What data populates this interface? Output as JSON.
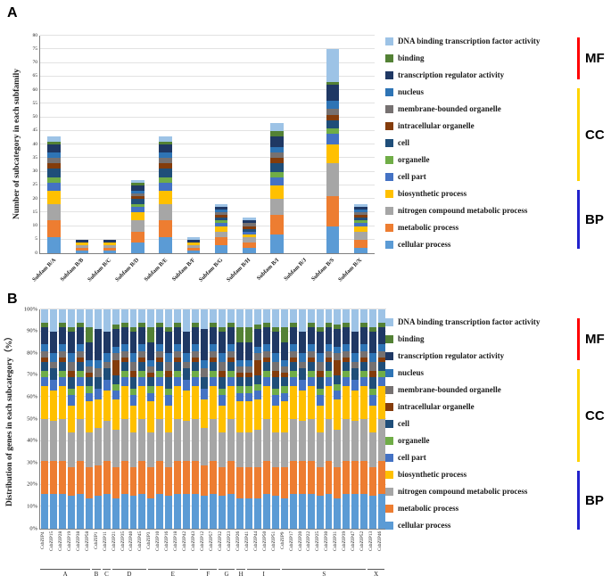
{
  "panel_a": {
    "label": "A"
  },
  "panel_b": {
    "label": "B"
  },
  "subcategories": [
    {
      "name": "DNA binding transcription factor activity",
      "color": "#9DC3E6",
      "group": "MF"
    },
    {
      "name": "binding",
      "color": "#538135",
      "group": "MF"
    },
    {
      "name": "transcription regulator activity",
      "color": "#1F3864",
      "group": "MF"
    },
    {
      "name": "nucleus",
      "color": "#2E74B5",
      "group": "CC"
    },
    {
      "name": "membrane-bounded organelle",
      "color": "#767171",
      "group": "CC"
    },
    {
      "name": "intracellular organelle",
      "color": "#843C0B",
      "group": "CC"
    },
    {
      "name": "cell",
      "color": "#1F4E79",
      "group": "CC"
    },
    {
      "name": "organelle",
      "color": "#70AD47",
      "group": "CC"
    },
    {
      "name": "cell part",
      "color": "#4472C4",
      "group": "CC"
    },
    {
      "name": "biosynthetic process",
      "color": "#FFC000",
      "group": "BP"
    },
    {
      "name": "nitrogen compound metabolic process",
      "color": "#A6A6A6",
      "group": "BP"
    },
    {
      "name": "metabolic process",
      "color": "#ED7D31",
      "group": "BP"
    },
    {
      "name": "cellular process",
      "color": "#5B9BD5",
      "group": "BP"
    }
  ],
  "go_groups": [
    {
      "label": "MF",
      "color": "#FF0000",
      "span": [
        0,
        2
      ]
    },
    {
      "label": "CC",
      "color": "#FFD400",
      "span": [
        3,
        8
      ]
    },
    {
      "label": "BP",
      "color": "#2222CC",
      "span": [
        9,
        12
      ]
    }
  ],
  "chart_data": [
    {
      "type": "bar",
      "stacked": true,
      "ylabel": "Number of subcategory in each subfamily",
      "ylim": [
        0,
        80
      ],
      "ytick_step": 5,
      "legend_position": "right",
      "series_note": "values listed per bar in legend order (top item first, bottom stack item last)",
      "bars": [
        {
          "label": "Subfam B/A",
          "values": [
            2,
            1,
            3,
            2,
            2,
            2,
            3,
            2,
            3,
            5,
            6,
            6,
            6
          ]
        },
        {
          "label": "Subfam B/B",
          "values": [
            0,
            0,
            1,
            0,
            0,
            0,
            0,
            0,
            0,
            1,
            1,
            1,
            1
          ]
        },
        {
          "label": "Subfam B/C",
          "values": [
            0,
            0,
            1,
            0,
            0,
            0,
            0,
            0,
            0,
            1,
            1,
            1,
            1
          ]
        },
        {
          "label": "Subfam B/D",
          "values": [
            1,
            1,
            2,
            1,
            1,
            1,
            2,
            1,
            2,
            3,
            4,
            4,
            4
          ]
        },
        {
          "label": "Subfam B/E",
          "values": [
            2,
            1,
            3,
            2,
            2,
            2,
            3,
            2,
            3,
            5,
            6,
            6,
            6
          ]
        },
        {
          "label": "Subfam B/F",
          "values": [
            1,
            0,
            1,
            0,
            0,
            0,
            0,
            0,
            0,
            1,
            1,
            1,
            1
          ]
        },
        {
          "label": "Subfam B/G",
          "values": [
            1,
            0,
            1,
            1,
            1,
            1,
            1,
            1,
            1,
            2,
            2,
            3,
            3
          ]
        },
        {
          "label": "Subfam B/H",
          "values": [
            1,
            0,
            1,
            0,
            1,
            1,
            1,
            0,
            1,
            1,
            2,
            2,
            2
          ]
        },
        {
          "label": "Subfam B/I",
          "values": [
            3,
            2,
            4,
            2,
            2,
            2,
            3,
            2,
            3,
            5,
            6,
            7,
            7
          ]
        },
        {
          "label": "Subfam B/J",
          "values": [
            0,
            0,
            0,
            0,
            0,
            0,
            0,
            0,
            0,
            0,
            0,
            0,
            0
          ]
        },
        {
          "label": "Subfam B/S",
          "values": [
            12,
            1,
            6,
            3,
            2,
            2,
            3,
            2,
            4,
            7,
            12,
            11,
            10
          ]
        },
        {
          "label": "Subfam B/X",
          "values": [
            1,
            0,
            1,
            1,
            1,
            1,
            1,
            1,
            1,
            2,
            3,
            3,
            2
          ]
        }
      ]
    },
    {
      "type": "bar",
      "stacked": true,
      "percent": true,
      "ylabel": "Distribution of genes in each subcategory（%）",
      "ylim": [
        0,
        100
      ],
      "ytick_step": 10,
      "legend_position": "right",
      "groups": [
        {
          "label": "A",
          "count": 6
        },
        {
          "label": "B",
          "count": 1
        },
        {
          "label": "C",
          "count": 1
        },
        {
          "label": "D",
          "count": 4
        },
        {
          "label": "E",
          "count": 6
        },
        {
          "label": "F",
          "count": 2
        },
        {
          "label": "G",
          "count": 2
        },
        {
          "label": "H",
          "count": 1
        },
        {
          "label": "I",
          "count": 4
        },
        {
          "label": "S",
          "count": 10
        },
        {
          "label": "X",
          "count": 2
        }
      ],
      "bars": [
        {
          "label": "CsbZIP4",
          "values": [
            6,
            2,
            8,
            3,
            3,
            2,
            4,
            3,
            4,
            15,
            19,
            15,
            16
          ]
        },
        {
          "label": "CsbZIP15",
          "values": [
            10,
            0,
            10,
            4,
            3,
            0,
            5,
            0,
            5,
            14,
            18,
            15,
            16
          ]
        },
        {
          "label": "CsbZIP28",
          "values": [
            6,
            2,
            8,
            3,
            3,
            2,
            4,
            3,
            4,
            15,
            19,
            15,
            16
          ]
        },
        {
          "label": "CsbZIP19",
          "values": [
            8,
            2,
            10,
            4,
            4,
            3,
            5,
            3,
            5,
            12,
            16,
            13,
            15
          ]
        },
        {
          "label": "CsbZIP38",
          "values": [
            6,
            2,
            8,
            3,
            3,
            2,
            4,
            3,
            4,
            15,
            19,
            15,
            16
          ]
        },
        {
          "label": "CsbZIP58",
          "values": [
            8,
            7,
            8,
            3,
            3,
            2,
            4,
            3,
            4,
            14,
            16,
            14,
            14
          ]
        },
        {
          "label": "CsbZIP1",
          "values": [
            9,
            0,
            14,
            4,
            4,
            0,
            5,
            0,
            5,
            13,
            17,
            14,
            15
          ]
        },
        {
          "label": "CsbZIP11",
          "values": [
            10,
            0,
            10,
            4,
            3,
            0,
            5,
            0,
            5,
            14,
            18,
            15,
            16
          ]
        },
        {
          "label": "CsbZIP21",
          "values": [
            7,
            2,
            8,
            3,
            3,
            7,
            4,
            3,
            4,
            14,
            17,
            14,
            14
          ]
        },
        {
          "label": "CsbZIP35",
          "values": [
            6,
            2,
            8,
            3,
            3,
            2,
            4,
            3,
            4,
            15,
            19,
            15,
            16
          ]
        },
        {
          "label": "CsbZIP40",
          "values": [
            8,
            2,
            10,
            4,
            4,
            3,
            5,
            3,
            5,
            12,
            16,
            13,
            15
          ]
        },
        {
          "label": "CsbZIP45",
          "values": [
            6,
            2,
            8,
            3,
            3,
            2,
            4,
            3,
            4,
            15,
            19,
            15,
            16
          ]
        },
        {
          "label": "CsbZIP3",
          "values": [
            8,
            7,
            8,
            3,
            3,
            2,
            4,
            3,
            4,
            14,
            16,
            14,
            14
          ]
        },
        {
          "label": "CsbZIP10",
          "values": [
            6,
            2,
            8,
            3,
            3,
            2,
            4,
            3,
            4,
            15,
            19,
            15,
            16
          ]
        },
        {
          "label": "CsbZIP16",
          "values": [
            8,
            2,
            10,
            4,
            4,
            3,
            5,
            3,
            5,
            12,
            16,
            13,
            15
          ]
        },
        {
          "label": "CsbZIP18",
          "values": [
            6,
            2,
            8,
            3,
            3,
            2,
            4,
            3,
            4,
            15,
            19,
            15,
            16
          ]
        },
        {
          "label": "CsbZIP42",
          "values": [
            10,
            0,
            10,
            4,
            3,
            0,
            5,
            0,
            5,
            14,
            18,
            15,
            16
          ]
        },
        {
          "label": "CsbZIP43",
          "values": [
            6,
            2,
            8,
            3,
            3,
            2,
            4,
            3,
            4,
            15,
            19,
            15,
            16
          ]
        },
        {
          "label": "CsbZIP12",
          "values": [
            9,
            0,
            14,
            4,
            4,
            0,
            5,
            0,
            5,
            13,
            17,
            14,
            15
          ]
        },
        {
          "label": "CsbZIP57",
          "values": [
            6,
            2,
            8,
            3,
            3,
            2,
            4,
            3,
            4,
            15,
            19,
            15,
            16
          ]
        },
        {
          "label": "CsbZIP32",
          "values": [
            8,
            2,
            10,
            4,
            4,
            3,
            5,
            3,
            5,
            12,
            16,
            13,
            15
          ]
        },
        {
          "label": "CsbZIP23",
          "values": [
            6,
            2,
            8,
            3,
            3,
            2,
            4,
            3,
            4,
            15,
            19,
            15,
            16
          ]
        },
        {
          "label": "CsbZIP26",
          "values": [
            8,
            7,
            8,
            3,
            3,
            2,
            4,
            3,
            4,
            14,
            16,
            14,
            14
          ]
        },
        {
          "label": "CsbZIP41",
          "values": [
            8,
            7,
            8,
            3,
            3,
            2,
            4,
            3,
            4,
            14,
            16,
            14,
            14
          ]
        },
        {
          "label": "CsbZIP44",
          "values": [
            7,
            2,
            8,
            3,
            3,
            7,
            4,
            3,
            4,
            14,
            17,
            14,
            14
          ]
        },
        {
          "label": "CsbZIP50",
          "values": [
            6,
            2,
            8,
            3,
            3,
            2,
            4,
            3,
            4,
            15,
            19,
            15,
            16
          ]
        },
        {
          "label": "CsbZIP51",
          "values": [
            8,
            2,
            10,
            4,
            4,
            3,
            5,
            3,
            5,
            12,
            16,
            13,
            15
          ]
        },
        {
          "label": "CsbZIP9",
          "values": [
            8,
            7,
            8,
            3,
            3,
            2,
            4,
            3,
            4,
            14,
            16,
            14,
            14
          ]
        },
        {
          "label": "CsbZIP17",
          "values": [
            6,
            2,
            8,
            3,
            3,
            2,
            4,
            3,
            4,
            15,
            19,
            15,
            16
          ]
        },
        {
          "label": "CsbZIP20",
          "values": [
            10,
            0,
            10,
            4,
            3,
            0,
            5,
            0,
            5,
            14,
            18,
            15,
            16
          ]
        },
        {
          "label": "CsbZIP22",
          "values": [
            6,
            2,
            8,
            3,
            3,
            2,
            4,
            3,
            4,
            15,
            19,
            15,
            16
          ]
        },
        {
          "label": "CsbZIP25",
          "values": [
            8,
            2,
            10,
            4,
            4,
            3,
            5,
            3,
            5,
            12,
            16,
            13,
            15
          ]
        },
        {
          "label": "CsbZIP30",
          "values": [
            6,
            2,
            8,
            3,
            3,
            2,
            4,
            3,
            4,
            15,
            19,
            15,
            16
          ]
        },
        {
          "label": "CsbZIP31",
          "values": [
            7,
            2,
            8,
            3,
            3,
            7,
            4,
            3,
            4,
            14,
            17,
            14,
            14
          ]
        },
        {
          "label": "CsbZIP39",
          "values": [
            6,
            2,
            8,
            3,
            3,
            2,
            4,
            3,
            4,
            15,
            19,
            15,
            16
          ]
        },
        {
          "label": "CsbZIP47",
          "values": [
            10,
            0,
            10,
            4,
            3,
            0,
            5,
            0,
            5,
            14,
            18,
            15,
            16
          ]
        },
        {
          "label": "CsbZIP52",
          "values": [
            6,
            2,
            8,
            3,
            3,
            2,
            4,
            3,
            4,
            15,
            19,
            15,
            16
          ]
        },
        {
          "label": "CsbZIP13",
          "values": [
            8,
            2,
            10,
            4,
            4,
            3,
            5,
            3,
            5,
            12,
            16,
            13,
            15
          ]
        },
        {
          "label": "CsbZIP46",
          "values": [
            6,
            2,
            8,
            3,
            3,
            2,
            4,
            3,
            4,
            15,
            19,
            15,
            16
          ]
        }
      ]
    }
  ]
}
